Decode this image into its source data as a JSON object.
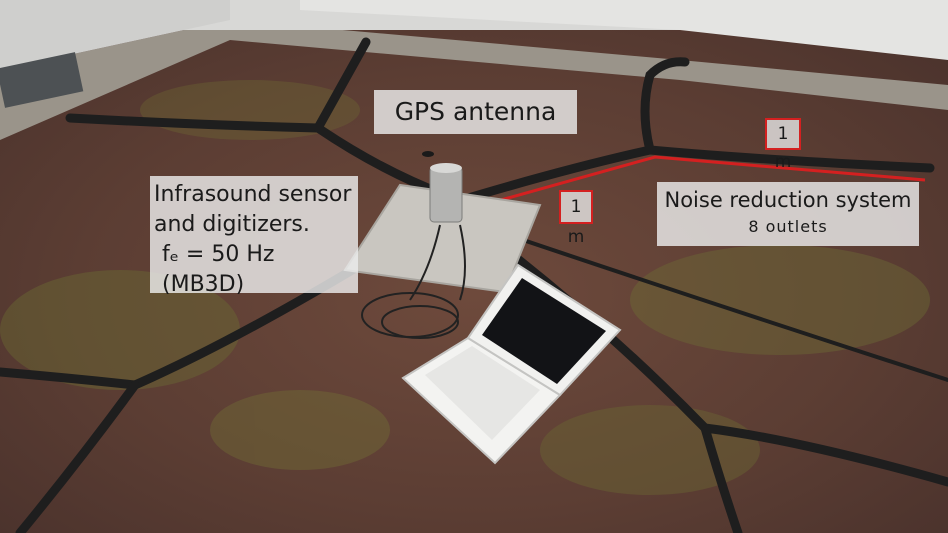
{
  "photo": {
    "subject": "infrasound-sensor-on-green-roof",
    "annotation_color": "#d42020"
  },
  "labels": {
    "gps_antenna": "GPS antenna",
    "infrasound_line1": "Infrasound sensor",
    "infrasound_line2": "and digitizers.",
    "infrasound_line3": "fₑ = 50 Hz (MB3D)",
    "noise_line1": "Noise reduction system",
    "noise_line2": "8 outlets",
    "distance_1": "1 m",
    "distance_2": "1 m"
  }
}
